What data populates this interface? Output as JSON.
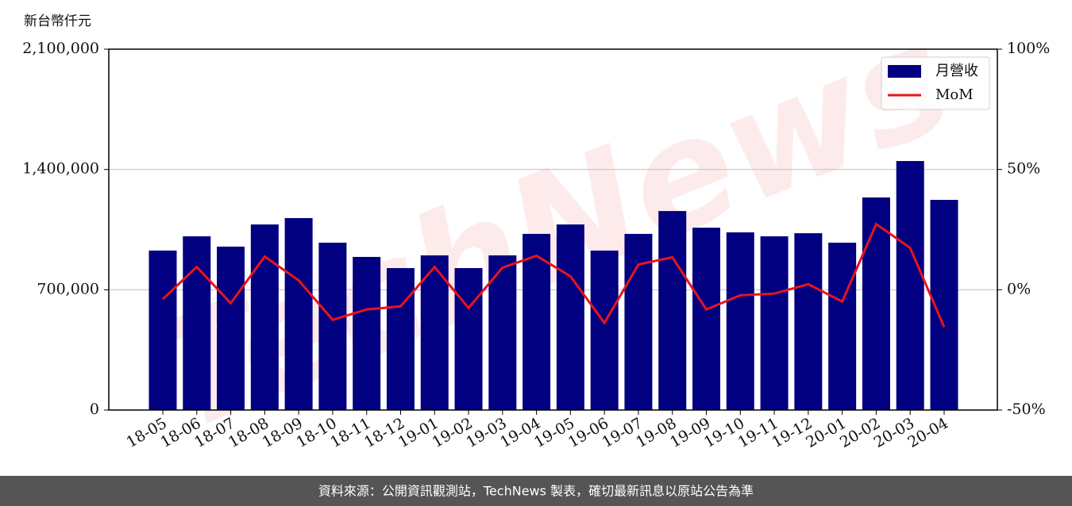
{
  "chart_data": {
    "type": "bar_line",
    "y_label": "新台幣仟元",
    "watermark": "TechNews",
    "footer": "資料來源：公開資訊觀測站，TechNews 製表，確切最新訊息以原站公告為準",
    "categories": [
      "18-05",
      "18-06",
      "18-07",
      "18-08",
      "18-09",
      "18-10",
      "18-11",
      "18-12",
      "19-01",
      "19-02",
      "19-03",
      "19-04",
      "19-05",
      "19-06",
      "19-07",
      "19-08",
      "19-09",
      "19-10",
      "19-11",
      "19-12",
      "20-01",
      "20-02",
      "20-03",
      "20-04"
    ],
    "series": [
      {
        "name": "月營收",
        "color": "#000080",
        "values": [
          928000,
          1011000,
          951000,
          1080000,
          1117000,
          974000,
          891000,
          826000,
          900000,
          826000,
          900000,
          1025000,
          1080000,
          928000,
          1025000,
          1158000,
          1061000,
          1034000,
          1011000,
          1029000,
          974000,
          1237000,
          1449000,
          1223000
        ]
      },
      {
        "name": "MoM",
        "color": "#e8141b",
        "axis": "y2",
        "values": [
          -3.9,
          9.5,
          -5.6,
          13.8,
          3.9,
          -12.5,
          -8.2,
          -6.9,
          9.5,
          -7.6,
          9.2,
          14.1,
          5.6,
          -13.8,
          10.5,
          13.5,
          -8.2,
          -2.3,
          -1.6,
          2.3,
          -4.9,
          27.3,
          17.4,
          -15.5
        ]
      }
    ],
    "ylim": [
      0,
      2100000
    ],
    "yticks": [
      0,
      {
        "value": 700000,
        "label": "700,000"
      },
      {
        "value": 1400000,
        "label": "1,400,000"
      },
      {
        "value": 2100000,
        "label": "2,100,000"
      }
    ],
    "y2lim": [
      -50,
      100
    ],
    "y2ticks": [
      {
        "value": -50,
        "label": "-50%"
      },
      {
        "value": 0,
        "label": "0%"
      },
      {
        "value": 50,
        "label": "50%"
      },
      {
        "value": 100,
        "label": "100%"
      }
    ],
    "grid": true,
    "legend": "upper right"
  }
}
